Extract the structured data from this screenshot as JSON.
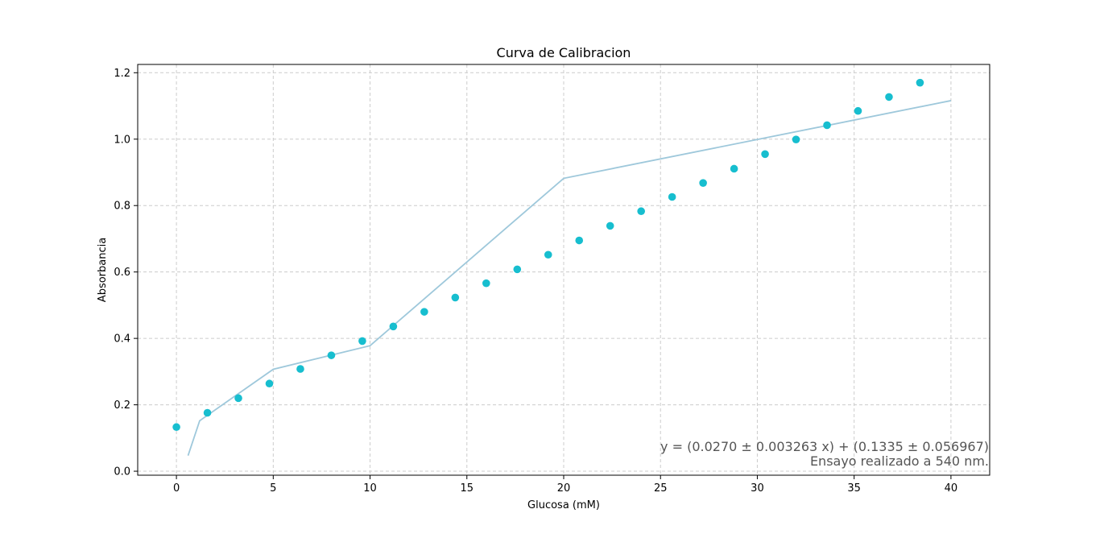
{
  "chart_data": {
    "type": "scatter",
    "title": "Curva de Calibracion",
    "xlabel": "Glucosa (mM)",
    "ylabel": "Absorbancia",
    "xlim": [
      -2,
      42
    ],
    "ylim": [
      -0.012,
      1.225
    ],
    "xticks": [
      0,
      5,
      10,
      15,
      20,
      25,
      30,
      35,
      40
    ],
    "yticks": [
      0.0,
      0.2,
      0.4,
      0.6,
      0.8,
      1.0,
      1.2
    ],
    "xtick_labels": [
      "0",
      "5",
      "10",
      "15",
      "20",
      "25",
      "30",
      "35",
      "40"
    ],
    "ytick_labels": [
      "0.0",
      "0.2",
      "0.4",
      "0.6",
      "0.8",
      "1.0",
      "1.2"
    ],
    "grid": true,
    "series": [
      {
        "type": "scatter",
        "color": "#17BECF",
        "x": [
          0,
          1.6,
          3.2,
          4.8,
          6.4,
          8.0,
          9.6,
          11.2,
          12.8,
          14.4,
          16.0,
          17.6,
          19.2,
          20.8,
          22.4,
          24.0,
          25.6,
          27.2,
          28.8,
          30.4,
          32.0,
          33.6,
          35.2,
          36.8,
          38.4
        ],
        "y": [
          0.133,
          0.176,
          0.22,
          0.264,
          0.308,
          0.349,
          0.392,
          0.436,
          0.48,
          0.523,
          0.566,
          0.608,
          0.652,
          0.695,
          0.739,
          0.783,
          0.826,
          0.868,
          0.911,
          0.955,
          0.999,
          1.042,
          1.085,
          1.127,
          1.17
        ]
      },
      {
        "type": "line",
        "color": "#9EC8DB",
        "x": [
          0.6,
          1.2,
          5.0,
          10.0,
          20.0,
          40.0
        ],
        "y": [
          0.047,
          0.152,
          0.307,
          0.378,
          0.882,
          1.116
        ]
      }
    ],
    "annotations": [
      "y = (0.0270 ± 0.003263 x) + (0.1335 ± 0.056967)",
      "Ensayo realizado a 540 nm."
    ]
  }
}
